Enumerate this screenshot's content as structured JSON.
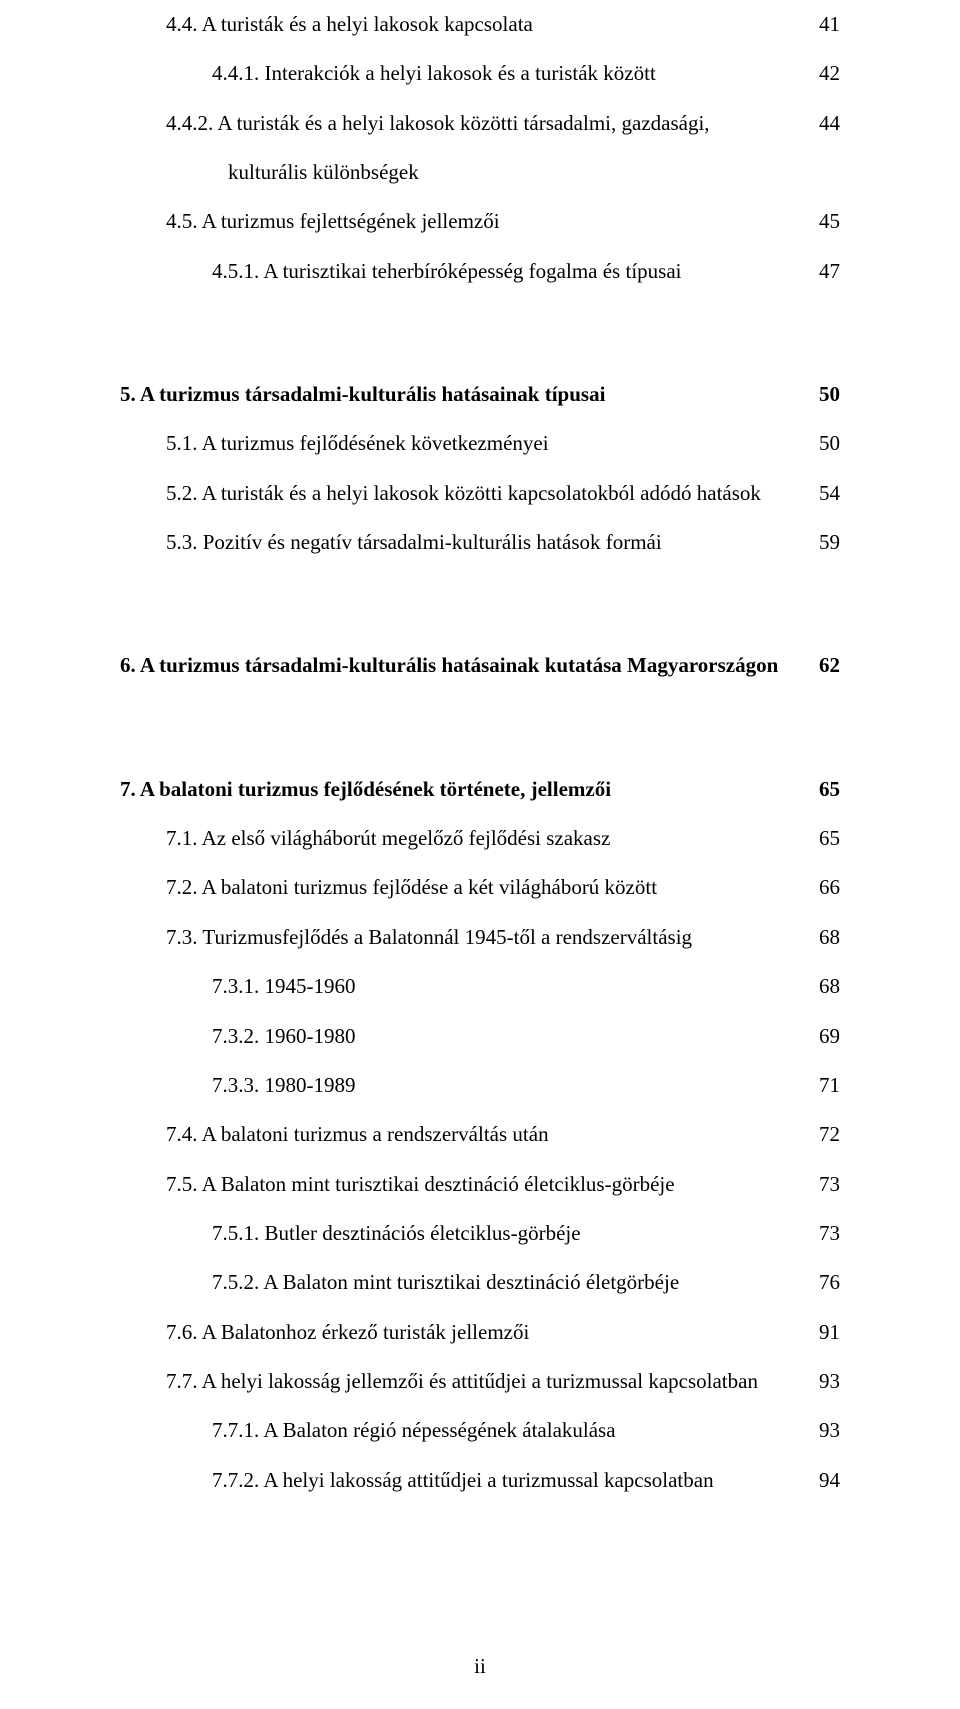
{
  "page_number": "ii",
  "entries": [
    {
      "level": 1,
      "bold": false,
      "title": "4.4. A turisták és a helyi lakosok kapcsolata",
      "page": "41",
      "spacer_after": ""
    },
    {
      "level": 2,
      "bold": false,
      "title": "4.4.1. Interakciók a helyi lakosok és a turisták között",
      "page": "42",
      "spacer_after": ""
    },
    {
      "level": 2,
      "bold": false,
      "title": "4.4.2. A turisták és a helyi lakosok közötti társadalmi, gazdasági, kulturális különbségek",
      "page": "44",
      "spacer_after": "",
      "hanging": true
    },
    {
      "level": 1,
      "bold": false,
      "title": "4.5. A turizmus fejlettségének jellemzői",
      "page": "45",
      "spacer_after": ""
    },
    {
      "level": 2,
      "bold": false,
      "title": "4.5.1. A turisztikai teherbíróképesség fogalma és típusai",
      "page": "47",
      "spacer_after": "md"
    },
    {
      "level": 0,
      "bold": true,
      "title": "5. A turizmus társadalmi-kulturális hatásainak típusai",
      "page": "50",
      "spacer_after": ""
    },
    {
      "level": 1,
      "bold": false,
      "title": "5.1. A turizmus fejlődésének következményei",
      "page": "50",
      "spacer_after": ""
    },
    {
      "level": 1,
      "bold": false,
      "title": "5.2. A turisták és a helyi lakosok közötti kapcsolatokból adódó hatások",
      "page": "54",
      "spacer_after": ""
    },
    {
      "level": 1,
      "bold": false,
      "title": "5.3. Pozitív és negatív társadalmi-kulturális hatások formái",
      "page": "59",
      "spacer_after": "md"
    },
    {
      "level": 0,
      "bold": true,
      "title": "6. A turizmus társadalmi-kulturális hatásainak kutatása Magyarországon",
      "page": "62",
      "spacer_after": "md"
    },
    {
      "level": 0,
      "bold": true,
      "title": "7. A balatoni turizmus fejlődésének története, jellemzői",
      "page": "65",
      "spacer_after": ""
    },
    {
      "level": 1,
      "bold": false,
      "title": "7.1. Az első világháborút megelőző fejlődési szakasz",
      "page": "65",
      "spacer_after": ""
    },
    {
      "level": 1,
      "bold": false,
      "title": "7.2. A balatoni turizmus fejlődése a két világháború között",
      "page": "66",
      "spacer_after": ""
    },
    {
      "level": 1,
      "bold": false,
      "title": "7.3. Turizmusfejlődés a Balatonnál 1945-től a rendszerváltásig",
      "page": "68",
      "spacer_after": ""
    },
    {
      "level": 2,
      "bold": false,
      "title": "7.3.1. 1945-1960",
      "page": "68",
      "spacer_after": ""
    },
    {
      "level": 2,
      "bold": false,
      "title": "7.3.2. 1960-1980",
      "page": "69",
      "spacer_after": ""
    },
    {
      "level": 2,
      "bold": false,
      "title": "7.3.3. 1980-1989",
      "page": "71",
      "spacer_after": ""
    },
    {
      "level": 1,
      "bold": false,
      "title": "7.4. A balatoni turizmus a rendszerváltás után",
      "page": "72",
      "spacer_after": ""
    },
    {
      "level": 1,
      "bold": false,
      "title": "7.5. A Balaton mint turisztikai desztináció életciklus-görbéje",
      "page": "73",
      "spacer_after": ""
    },
    {
      "level": 2,
      "bold": false,
      "title": "7.5.1. Butler desztinációs életciklus-görbéje",
      "page": "73",
      "spacer_after": ""
    },
    {
      "level": 2,
      "bold": false,
      "title": "7.5.2. A Balaton mint turisztikai desztináció életgörbéje",
      "page": "76",
      "spacer_after": ""
    },
    {
      "level": 1,
      "bold": false,
      "title": "7.6. A Balatonhoz érkező turisták jellemzői",
      "page": "91",
      "spacer_after": ""
    },
    {
      "level": 1,
      "bold": false,
      "title": "7.7. A helyi lakosság jellemzői és attitűdjei a turizmussal kapcsolatban",
      "page": "93",
      "spacer_after": ""
    },
    {
      "level": 2,
      "bold": false,
      "title": "7.7.1. A Balaton régió népességének átalakulása",
      "page": "93",
      "spacer_after": ""
    },
    {
      "level": 2,
      "bold": false,
      "title": "7.7.2. A helyi lakosság attitűdjei a turizmussal kapcsolatban",
      "page": "94",
      "spacer_after": ""
    }
  ]
}
